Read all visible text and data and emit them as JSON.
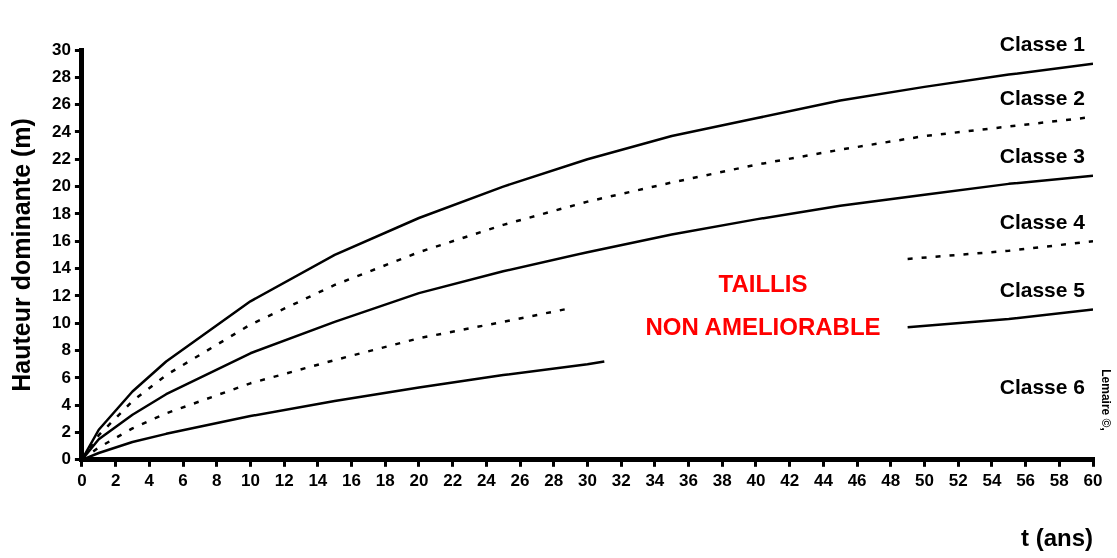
{
  "chart_data": {
    "type": "line",
    "xlabel": "t (ans)",
    "ylabel": "Hauteur dominante (m)",
    "xlim": [
      0,
      60
    ],
    "xticks": [
      0,
      2,
      4,
      6,
      8,
      10,
      12,
      14,
      16,
      18,
      20,
      22,
      24,
      26,
      28,
      30,
      32,
      34,
      36,
      38,
      40,
      42,
      44,
      46,
      48,
      50,
      52,
      54,
      56,
      58,
      60
    ],
    "ylim": [
      0,
      30
    ],
    "yticks": [
      0,
      2,
      4,
      6,
      8,
      10,
      12,
      14,
      16,
      18,
      20,
      22,
      24,
      26,
      28,
      30
    ],
    "grid": false,
    "legend": false,
    "marker": "none",
    "series": [
      {
        "name": "Classe 1",
        "color": "#000000",
        "line_style": "solid",
        "x": [
          0,
          1,
          3,
          5,
          10,
          15,
          20,
          25,
          30,
          35,
          40,
          45,
          50,
          55,
          60
        ],
        "values": [
          0,
          2.2,
          5,
          7.2,
          11.6,
          15,
          17.7,
          20,
          22,
          23.7,
          25,
          26.3,
          27.3,
          28.2,
          29
        ]
      },
      {
        "name": "Classe 2",
        "color": "#000000",
        "line_style": "dashed",
        "x": [
          0,
          1,
          3,
          5,
          10,
          15,
          20,
          25,
          30,
          35,
          40,
          45,
          50,
          55,
          60
        ],
        "values": [
          0,
          1.8,
          4.3,
          6.2,
          9.9,
          12.8,
          15.2,
          17.2,
          18.9,
          20.3,
          21.6,
          22.7,
          23.7,
          24.4,
          25.1
        ]
      },
      {
        "name": "Classe 3",
        "color": "#000000",
        "line_style": "solid",
        "x": [
          0,
          1,
          3,
          5,
          10,
          15,
          20,
          25,
          30,
          35,
          40,
          45,
          50,
          55,
          60
        ],
        "values": [
          0,
          1.5,
          3.3,
          4.8,
          7.8,
          10.1,
          12.2,
          13.8,
          15.2,
          16.5,
          17.6,
          18.6,
          19.4,
          20.2,
          20.8
        ]
      },
      {
        "name": "Classe 4",
        "color": "#000000",
        "line_style": "dashed",
        "x": [
          0,
          1,
          3,
          5,
          10,
          15,
          20,
          25,
          29,
          40,
          49,
          55,
          60
        ],
        "values": [
          0,
          0.9,
          2.3,
          3.4,
          5.6,
          7.3,
          8.9,
          10.1,
          11.1,
          null,
          14.7,
          15.3,
          16
        ]
      },
      {
        "name": "Classe 5",
        "color": "#000000",
        "line_style": "solid",
        "x": [
          0,
          1,
          3,
          5,
          10,
          15,
          20,
          25,
          30,
          31,
          40,
          49,
          55,
          60
        ],
        "values": [
          0,
          0.5,
          1.3,
          1.9,
          3.2,
          4.3,
          5.3,
          6.2,
          7,
          7.2,
          null,
          9.7,
          10.3,
          11
        ]
      }
    ],
    "annotations": [
      "Classe 6",
      "TAILLIS",
      "NON AMELIORABLE",
      "Lemaire ©,"
    ]
  }
}
